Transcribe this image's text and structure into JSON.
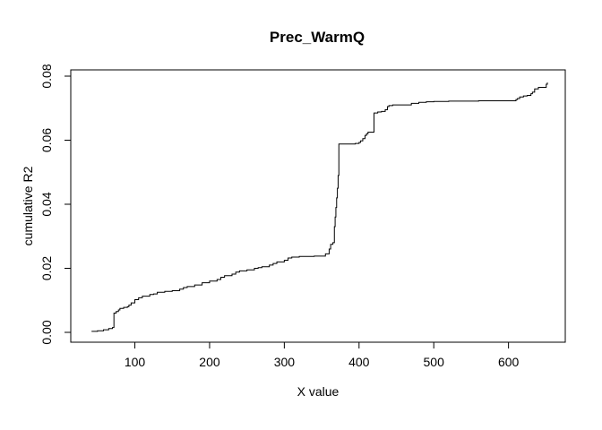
{
  "chart_data": {
    "type": "line",
    "title": "Prec_WarmQ",
    "xlabel": "X value",
    "ylabel": "cumulative R2",
    "xlim": [
      40,
      652
    ],
    "ylim": [
      0,
      0.08
    ],
    "x_ticks": [
      100,
      200,
      300,
      400,
      500,
      600
    ],
    "x_tick_labels": [
      "100",
      "200",
      "300",
      "400",
      "500",
      "600"
    ],
    "y_ticks": [
      0,
      0.02,
      0.04,
      0.06,
      0.08
    ],
    "y_tick_labels": [
      "0.00",
      "0.02",
      "0.04",
      "0.06",
      "0.08"
    ],
    "grid": false,
    "line_color": "#000000",
    "series": [
      {
        "x": [
          42,
          50,
          58,
          65,
          70,
          71,
          72,
          72.5,
          75,
          78,
          80,
          85,
          90,
          92,
          95,
          100,
          105,
          110,
          120,
          125,
          130,
          140,
          150,
          160,
          165,
          170,
          180,
          190,
          200,
          210,
          215,
          220,
          230,
          235,
          240,
          250,
          260,
          265,
          270,
          280,
          285,
          290,
          300,
          305,
          310,
          320,
          330,
          340,
          350,
          355,
          360,
          362,
          365,
          367,
          368,
          369,
          370,
          371,
          372,
          373,
          374,
          375,
          376,
          380,
          385,
          390,
          395,
          400,
          402,
          405,
          408,
          410,
          412,
          415,
          418,
          420,
          425,
          430,
          435,
          438,
          440,
          445,
          450,
          460,
          470,
          480,
          490,
          500,
          520,
          540,
          560,
          580,
          600,
          607,
          610,
          612,
          615,
          620,
          625,
          630,
          632,
          635,
          640,
          645,
          650,
          650.5,
          652
        ],
        "y": [
          0.0003,
          0.0005,
          0.0008,
          0.0012,
          0.0015,
          0.0015,
          0.006,
          0.006,
          0.0065,
          0.007,
          0.0075,
          0.0078,
          0.008,
          0.0085,
          0.0092,
          0.0102,
          0.0108,
          0.0113,
          0.0118,
          0.012,
          0.0125,
          0.0128,
          0.013,
          0.0135,
          0.014,
          0.0143,
          0.0148,
          0.0155,
          0.016,
          0.0165,
          0.0172,
          0.0177,
          0.0182,
          0.0188,
          0.0192,
          0.0195,
          0.02,
          0.0202,
          0.0205,
          0.021,
          0.0215,
          0.022,
          0.0225,
          0.0232,
          0.0235,
          0.0237,
          0.0237,
          0.0238,
          0.0238,
          0.0245,
          0.026,
          0.0275,
          0.028,
          0.033,
          0.036,
          0.039,
          0.042,
          0.045,
          0.049,
          0.0588,
          0.0588,
          0.0588,
          0.0588,
          0.0588,
          0.0588,
          0.0588,
          0.059,
          0.0593,
          0.0598,
          0.0605,
          0.0615,
          0.062,
          0.0625,
          0.0625,
          0.0625,
          0.0685,
          0.0688,
          0.069,
          0.0695,
          0.0705,
          0.0708,
          0.071,
          0.071,
          0.071,
          0.0715,
          0.0718,
          0.072,
          0.0721,
          0.0722,
          0.0722,
          0.0723,
          0.0723,
          0.0723,
          0.0723,
          0.0727,
          0.073,
          0.0735,
          0.0738,
          0.074,
          0.0745,
          0.075,
          0.076,
          0.0765,
          0.0765,
          0.0765,
          0.0775,
          0.078
        ]
      }
    ]
  }
}
